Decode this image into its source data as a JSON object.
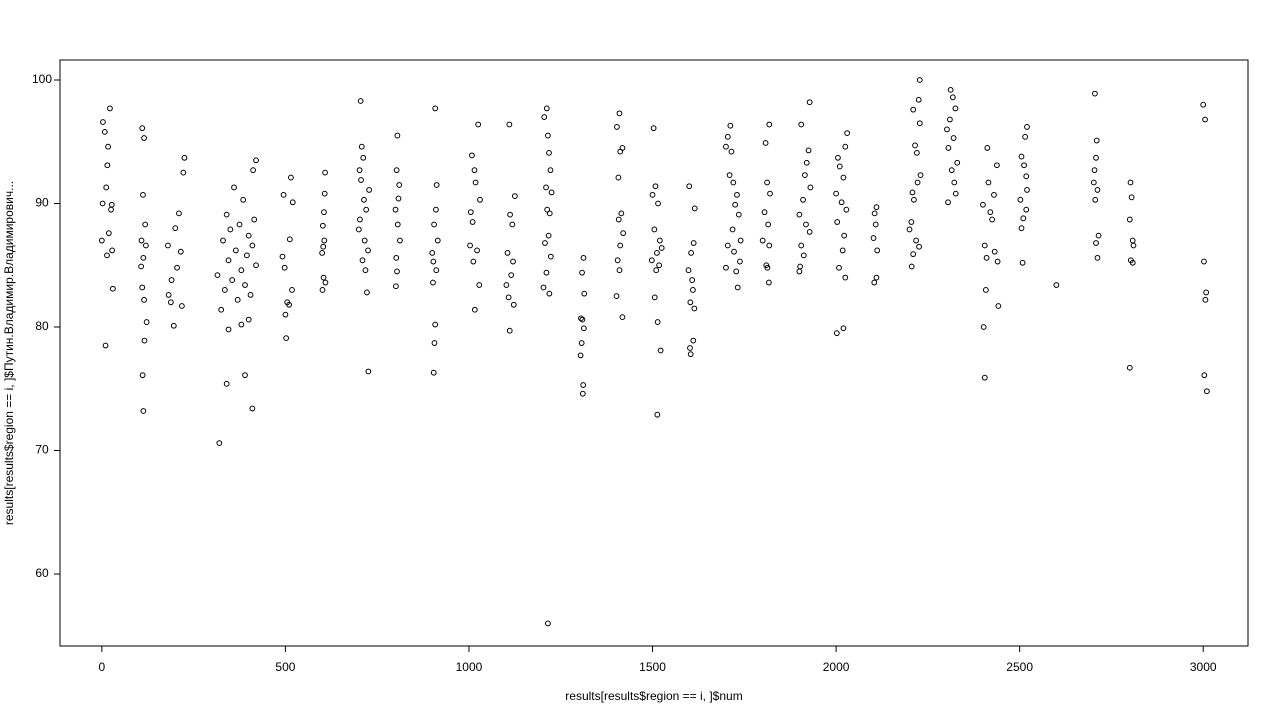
{
  "chart_data": {
    "type": "scatter",
    "x_label": "results[results$region == i, ]$num",
    "y_label": "results[results$region == i, ]$Путин.Владимир.Владимирович...",
    "xlim": [
      -114,
      3122
    ],
    "ylim": [
      54.17,
      101.62
    ],
    "xticks": [
      0,
      500,
      1000,
      1500,
      2000,
      2500,
      3000
    ],
    "yticks": [
      60,
      70,
      80,
      90,
      100
    ],
    "color": "#000000",
    "x": [
      3,
      22,
      8,
      17,
      15,
      12,
      2,
      27,
      25,
      19,
      0,
      28,
      14,
      30,
      10,
      110,
      115,
      112,
      118,
      108,
      120,
      113,
      107,
      110,
      115,
      122,
      116,
      111,
      113,
      225,
      222,
      210,
      200,
      180,
      215,
      205,
      190,
      182,
      188,
      218,
      196,
      360,
      385,
      340,
      415,
      375,
      350,
      400,
      330,
      410,
      365,
      395,
      345,
      420,
      380,
      315,
      355,
      390,
      335,
      405,
      370,
      325,
      400,
      380,
      345,
      420,
      412,
      340,
      390,
      410,
      320,
      515,
      495,
      520,
      512,
      492,
      498,
      518,
      505,
      510,
      500,
      502,
      608,
      607,
      605,
      602,
      606,
      603,
      600,
      604,
      609,
      601,
      705,
      708,
      712,
      702,
      706,
      728,
      714,
      720,
      703,
      700,
      716,
      725,
      710,
      718,
      722,
      726,
      805,
      803,
      810,
      808,
      800,
      806,
      812,
      802,
      804,
      801,
      908,
      912,
      910,
      905,
      915,
      900,
      903,
      911,
      902,
      908,
      906,
      904,
      1025,
      1008,
      1015,
      1018,
      1030,
      1005,
      1010,
      1003,
      1022,
      1012,
      1028,
      1016,
      1110,
      1125,
      1112,
      1118,
      1105,
      1120,
      1115,
      1102,
      1108,
      1122,
      1111,
      1212,
      1205,
      1215,
      1218,
      1222,
      1210,
      1225,
      1213,
      1220,
      1217,
      1207,
      1223,
      1211,
      1203,
      1219,
      1215,
      1312,
      1308,
      1314,
      1305,
      1309,
      1313,
      1307,
      1304,
      1311,
      1310,
      1410,
      1403,
      1418,
      1412,
      1407,
      1415,
      1408,
      1420,
      1412,
      1405,
      1410,
      1402,
      1418,
      1503,
      1508,
      1500,
      1515,
      1505,
      1520,
      1525,
      1512,
      1498,
      1518,
      1510,
      1506,
      1514,
      1522,
      1513,
      1600,
      1615,
      1612,
      1605,
      1598,
      1608,
      1610,
      1603,
      1614,
      1611,
      1602,
      1604,
      1712,
      1705,
      1700,
      1715,
      1710,
      1720,
      1730,
      1725,
      1735,
      1718,
      1740,
      1705,
      1722,
      1738,
      1700,
      1728,
      1732,
      1818,
      1808,
      1812,
      1820,
      1805,
      1815,
      1800,
      1818,
      1810,
      1813,
      1817,
      1928,
      1905,
      1925,
      1920,
      1915,
      1930,
      1910,
      1900,
      1918,
      1928,
      1905,
      1912,
      1902,
      1900,
      2030,
      2025,
      2005,
      2010,
      2020,
      2000,
      2015,
      2028,
      2003,
      2022,
      2018,
      2008,
      2025,
      2020,
      2002,
      2110,
      2105,
      2108,
      2102,
      2112,
      2110,
      2104,
      2228,
      2225,
      2210,
      2228,
      2215,
      2220,
      2230,
      2222,
      2208,
      2212,
      2205,
      2200,
      2218,
      2226,
      2210,
      2206,
      2312,
      2318,
      2325,
      2310,
      2302,
      2320,
      2306,
      2330,
      2315,
      2322,
      2326,
      2305,
      2412,
      2438,
      2415,
      2430,
      2400,
      2420,
      2425,
      2405,
      2432,
      2410,
      2440,
      2408,
      2442,
      2402,
      2405,
      2520,
      2515,
      2505,
      2512,
      2518,
      2520,
      2502,
      2518,
      2510,
      2505,
      2508,
      2600,
      2705,
      2710,
      2708,
      2704,
      2702,
      2712,
      2706,
      2715,
      2708,
      2712,
      2802,
      2805,
      2800,
      2808,
      2810,
      2803,
      2808,
      2800,
      3000,
      3005,
      3002,
      3008,
      3006,
      3003,
      3010
    ],
    "y": [
      96.6,
      97.7,
      95.8,
      94.6,
      93.1,
      91.3,
      90,
      89.9,
      89.5,
      87.6,
      87,
      86.2,
      85.8,
      83.1,
      78.5,
      96.1,
      95.3,
      90.7,
      88.3,
      87,
      86.6,
      85.6,
      84.9,
      83.2,
      82.2,
      80.4,
      78.9,
      76.1,
      73.2,
      93.7,
      92.5,
      89.2,
      88,
      86.6,
      86.1,
      84.8,
      83.8,
      82.6,
      82,
      81.7,
      80.1,
      91.3,
      90.3,
      89.1,
      88.7,
      88.3,
      87.9,
      87.4,
      87,
      86.6,
      86.2,
      85.8,
      85.4,
      85,
      84.6,
      84.2,
      83.8,
      83.4,
      83,
      82.6,
      82.2,
      81.4,
      80.6,
      80.2,
      79.8,
      93.5,
      92.7,
      75.4,
      76.1,
      73.4,
      70.6,
      92.1,
      90.7,
      90.1,
      87.1,
      85.7,
      84.8,
      83,
      82,
      81.8,
      81,
      79.1,
      92.5,
      90.8,
      89.3,
      88.2,
      87,
      86.5,
      86,
      84,
      83.6,
      83,
      98.3,
      94.6,
      93.7,
      92.7,
      91.9,
      91.1,
      90.3,
      89.5,
      88.7,
      87.9,
      87,
      86.2,
      85.4,
      84.6,
      82.8,
      76.4,
      95.5,
      92.7,
      91.5,
      90.4,
      89.5,
      88.3,
      87,
      85.6,
      84.5,
      83.3,
      97.7,
      91.5,
      89.5,
      88.3,
      87,
      86,
      85.3,
      84.6,
      83.6,
      80.2,
      78.7,
      76.3,
      96.4,
      93.9,
      92.7,
      91.7,
      90.3,
      89.3,
      88.5,
      86.6,
      86.2,
      85.3,
      83.4,
      81.4,
      96.4,
      90.6,
      89.1,
      88.3,
      86,
      85.3,
      84.2,
      83.4,
      82.4,
      81.8,
      79.7,
      97.7,
      97,
      95.5,
      94.1,
      92.7,
      91.3,
      90.9,
      89.5,
      89.2,
      87.4,
      86.8,
      85.7,
      84.4,
      83.2,
      82.7,
      56,
      85.6,
      84.4,
      82.7,
      80.7,
      80.6,
      79.9,
      78.7,
      77.7,
      75.3,
      74.6,
      97.3,
      96.2,
      94.5,
      94.2,
      92.1,
      89.2,
      88.7,
      87.6,
      86.6,
      85.4,
      84.6,
      82.5,
      80.8,
      96.1,
      91.4,
      90.7,
      90,
      87.9,
      87,
      86.4,
      86,
      85.4,
      85,
      84.6,
      82.4,
      80.4,
      78.1,
      72.9,
      91.4,
      89.6,
      86.8,
      86,
      84.6,
      83.8,
      83,
      82,
      81.5,
      78.9,
      78.3,
      77.8,
      96.3,
      95.4,
      94.6,
      94.2,
      92.3,
      91.7,
      90.7,
      89.9,
      89.1,
      87.9,
      87,
      86.6,
      86.1,
      85.3,
      84.8,
      84.5,
      83.2,
      96.4,
      94.9,
      91.7,
      90.8,
      89.3,
      88.3,
      87,
      86.6,
      85,
      84.8,
      83.6,
      98.2,
      96.4,
      94.3,
      93.3,
      92.3,
      91.3,
      90.3,
      89.1,
      88.3,
      87.7,
      86.6,
      85.8,
      84.9,
      84.5,
      95.7,
      94.6,
      93.7,
      93,
      92.1,
      90.8,
      90.1,
      89.5,
      88.5,
      87.4,
      86.2,
      84.8,
      84,
      79.9,
      79.5,
      89.7,
      89.2,
      88.3,
      87.2,
      86.2,
      84,
      83.6,
      100,
      98.4,
      97.6,
      96.5,
      94.7,
      94.1,
      92.3,
      91.7,
      90.9,
      90.3,
      88.5,
      87.9,
      87,
      86.5,
      85.9,
      84.9,
      99.2,
      98.6,
      97.7,
      96.8,
      96,
      95.3,
      94.5,
      93.3,
      92.7,
      91.7,
      90.8,
      90.1,
      94.5,
      93.1,
      91.7,
      90.7,
      89.9,
      89.3,
      88.7,
      86.6,
      86.1,
      85.6,
      85.3,
      83,
      81.7,
      80,
      75.9,
      96.2,
      95.4,
      93.8,
      93.1,
      92.2,
      91.1,
      90.3,
      89.5,
      88.8,
      88,
      85.2,
      83.4,
      98.9,
      95.1,
      93.7,
      92.7,
      91.7,
      91.1,
      90.3,
      87.4,
      86.8,
      85.6,
      91.7,
      90.5,
      88.7,
      87,
      86.6,
      85.4,
      85.2,
      76.7,
      98,
      96.8,
      85.3,
      82.8,
      82.2,
      76.1,
      74.8
    ]
  }
}
